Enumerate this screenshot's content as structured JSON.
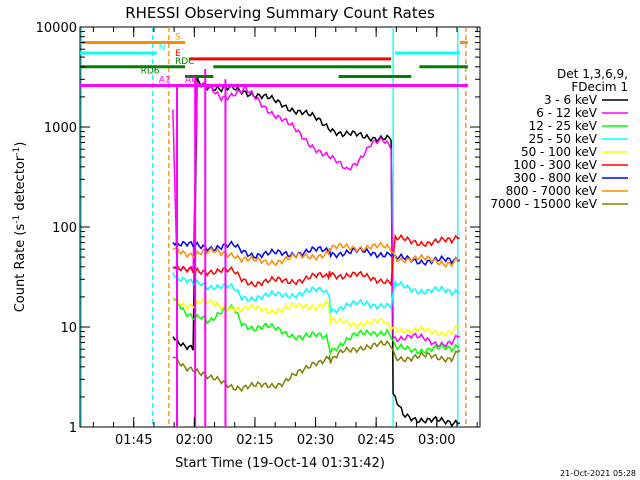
{
  "chart_data": {
    "type": "line",
    "title": "RHESSI Observing Summary Count Rates",
    "xlabel": "Start Time (19-Oct-14 01:31:42)",
    "ylabel_main": "Count Rate (s",
    "ylabel_sup1": "-1",
    "ylabel_mid": " detector",
    "ylabel_sup2": "-1",
    "ylabel_end": ")",
    "x_unit": "minutes since 01:31:42",
    "xlim": [
      0,
      99
    ],
    "ylim": [
      1,
      10000
    ],
    "yscale": "log",
    "x_ticks": [
      {
        "t": 13.3,
        "label": "01:45"
      },
      {
        "t": 28.3,
        "label": "02:00"
      },
      {
        "t": 43.3,
        "label": "02:15"
      },
      {
        "t": 58.3,
        "label": "02:30"
      },
      {
        "t": 73.3,
        "label": "02:45"
      },
      {
        "t": 88.3,
        "label": "03:00"
      }
    ],
    "y_ticks": [
      {
        "v": 1,
        "label": "1"
      },
      {
        "v": 10,
        "label": "10"
      },
      {
        "v": 100,
        "label": "100"
      },
      {
        "v": 1000,
        "label": "1000"
      },
      {
        "v": 10000,
        "label": "10000"
      }
    ],
    "legend": {
      "header": [
        "Det 1,3,6,9,",
        "FDecim 1"
      ],
      "placement": "right"
    },
    "series": [
      {
        "name": "3 - 6 keV",
        "color": "#000000",
        "points": [
          [
            23,
            8
          ],
          [
            24,
            7
          ],
          [
            26,
            6
          ],
          [
            28,
            6
          ],
          [
            29,
            3000
          ],
          [
            31,
            2700
          ],
          [
            35,
            2300
          ],
          [
            38,
            2400
          ],
          [
            41,
            2300
          ],
          [
            45,
            2000
          ],
          [
            50,
            1700
          ],
          [
            55,
            1400
          ],
          [
            60,
            1100
          ],
          [
            65,
            850
          ],
          [
            70,
            800
          ],
          [
            75,
            800
          ],
          [
            77,
            750
          ],
          [
            77.5,
            2
          ],
          [
            80,
            1.3
          ],
          [
            85,
            1.2
          ],
          [
            90,
            1.1
          ],
          [
            92,
            1.1
          ],
          [
            94,
            1.2
          ]
        ]
      },
      {
        "name": "6 - 12 keV",
        "color": "#ff00ff",
        "points": [
          [
            23,
            1500
          ],
          [
            24,
            40
          ],
          [
            26,
            40
          ],
          [
            28,
            40
          ],
          [
            29,
            2600
          ],
          [
            31,
            2500
          ],
          [
            35,
            2000
          ],
          [
            38,
            2200
          ],
          [
            41,
            2300
          ],
          [
            45,
            1700
          ],
          [
            50,
            1200
          ],
          [
            55,
            800
          ],
          [
            60,
            550
          ],
          [
            63,
            450
          ],
          [
            66,
            380
          ],
          [
            69,
            480
          ],
          [
            72,
            650
          ],
          [
            75,
            720
          ],
          [
            77,
            650
          ],
          [
            77.5,
            8
          ],
          [
            82,
            8
          ],
          [
            88,
            7
          ],
          [
            92,
            7
          ],
          [
            94,
            8
          ]
        ]
      },
      {
        "name": "12 - 25 keV",
        "color": "#00ff00",
        "points": [
          [
            23,
            20
          ],
          [
            24,
            18
          ],
          [
            26,
            13
          ],
          [
            28,
            12
          ],
          [
            30,
            13
          ],
          [
            32,
            12
          ],
          [
            35,
            14
          ],
          [
            38,
            15
          ],
          [
            40,
            11
          ],
          [
            43,
            10
          ],
          [
            46,
            10
          ],
          [
            50,
            9
          ],
          [
            55,
            8
          ],
          [
            58,
            8
          ],
          [
            61,
            8
          ],
          [
            62,
            6
          ],
          [
            65,
            7
          ],
          [
            68,
            8
          ],
          [
            72,
            9
          ],
          [
            76,
            9
          ],
          [
            77,
            8
          ],
          [
            78,
            6
          ],
          [
            82,
            6
          ],
          [
            88,
            6
          ],
          [
            92,
            6
          ],
          [
            94,
            7
          ]
        ]
      },
      {
        "name": "25 - 50 keV",
        "color": "#00ffff",
        "points": [
          [
            23,
            35
          ],
          [
            24,
            30
          ],
          [
            26,
            28
          ],
          [
            28,
            27
          ],
          [
            30,
            28
          ],
          [
            32,
            26
          ],
          [
            35,
            25
          ],
          [
            38,
            24
          ],
          [
            40,
            20
          ],
          [
            43,
            20
          ],
          [
            46,
            20
          ],
          [
            50,
            21
          ],
          [
            55,
            22
          ],
          [
            60,
            23
          ],
          [
            61.5,
            22
          ],
          [
            62,
            15
          ],
          [
            65,
            16
          ],
          [
            70,
            17
          ],
          [
            75,
            17
          ],
          [
            77,
            16
          ],
          [
            78,
            26
          ],
          [
            82,
            24
          ],
          [
            88,
            23
          ],
          [
            92,
            22
          ],
          [
            94,
            24
          ]
        ]
      },
      {
        "name": "50 - 100 keV",
        "color": "#ffff00",
        "points": [
          [
            23,
            20
          ],
          [
            24,
            18
          ],
          [
            26,
            17
          ],
          [
            28,
            17
          ],
          [
            30,
            18
          ],
          [
            32,
            17
          ],
          [
            35,
            16
          ],
          [
            38,
            16
          ],
          [
            40,
            15
          ],
          [
            43,
            15
          ],
          [
            46,
            15
          ],
          [
            50,
            15
          ],
          [
            55,
            16
          ],
          [
            60,
            17
          ],
          [
            61.5,
            17
          ],
          [
            62,
            11
          ],
          [
            65,
            11
          ],
          [
            70,
            11
          ],
          [
            75,
            11
          ],
          [
            77,
            10
          ],
          [
            78,
            10
          ],
          [
            82,
            9
          ],
          [
            88,
            9
          ],
          [
            92,
            9
          ],
          [
            94,
            10
          ]
        ]
      },
      {
        "name": "100 - 300 keV",
        "color": "#ff0000",
        "points": [
          [
            23,
            40
          ],
          [
            24,
            40
          ],
          [
            26,
            36
          ],
          [
            28,
            35
          ],
          [
            30,
            36
          ],
          [
            32,
            37
          ],
          [
            35,
            37
          ],
          [
            38,
            35
          ],
          [
            40,
            30
          ],
          [
            43,
            28
          ],
          [
            46,
            28
          ],
          [
            50,
            29
          ],
          [
            55,
            30
          ],
          [
            60,
            32
          ],
          [
            61.5,
            32
          ],
          [
            62,
            35
          ],
          [
            65,
            33
          ],
          [
            70,
            32
          ],
          [
            75,
            30
          ],
          [
            77,
            28
          ],
          [
            78,
            75
          ],
          [
            82,
            72
          ],
          [
            88,
            70
          ],
          [
            92,
            72
          ],
          [
            94,
            85
          ]
        ]
      },
      {
        "name": "300 - 800 keV",
        "color": "#0000ff",
        "points": [
          [
            23,
            70
          ],
          [
            24,
            68
          ],
          [
            26,
            65
          ],
          [
            28,
            64
          ],
          [
            30,
            65
          ],
          [
            32,
            64
          ],
          [
            35,
            63
          ],
          [
            38,
            64
          ],
          [
            40,
            58
          ],
          [
            43,
            54
          ],
          [
            46,
            53
          ],
          [
            50,
            54
          ],
          [
            55,
            56
          ],
          [
            60,
            58
          ],
          [
            61.5,
            58
          ],
          [
            62,
            55
          ],
          [
            65,
            56
          ],
          [
            70,
            56
          ],
          [
            75,
            55
          ],
          [
            77,
            54
          ],
          [
            78,
            48
          ],
          [
            82,
            47
          ],
          [
            88,
            46
          ],
          [
            92,
            45
          ],
          [
            94,
            50
          ]
        ]
      },
      {
        "name": "800 - 7000 keV",
        "color": "#ff8c00",
        "points": [
          [
            23,
            60
          ],
          [
            24,
            58
          ],
          [
            26,
            56
          ],
          [
            28,
            55
          ],
          [
            30,
            56
          ],
          [
            32,
            55
          ],
          [
            35,
            55
          ],
          [
            38,
            55
          ],
          [
            40,
            48
          ],
          [
            43,
            45
          ],
          [
            46,
            45
          ],
          [
            50,
            47
          ],
          [
            55,
            50
          ],
          [
            60,
            54
          ],
          [
            61.5,
            55
          ],
          [
            62,
            60
          ],
          [
            65,
            62
          ],
          [
            70,
            64
          ],
          [
            75,
            62
          ],
          [
            77,
            60
          ],
          [
            78,
            50
          ],
          [
            82,
            48
          ],
          [
            88,
            46
          ],
          [
            92,
            44
          ],
          [
            94,
            48
          ]
        ]
      },
      {
        "name": "7000 - 15000 keV",
        "color": "#808000",
        "points": [
          [
            23,
            5
          ],
          [
            24,
            4.5
          ],
          [
            26,
            4
          ],
          [
            28,
            4
          ],
          [
            30,
            3.5
          ],
          [
            32,
            3
          ],
          [
            35,
            2.8
          ],
          [
            38,
            2.6
          ],
          [
            40,
            2.5
          ],
          [
            43,
            2.5
          ],
          [
            46,
            2.6
          ],
          [
            50,
            2.8
          ],
          [
            55,
            3.5
          ],
          [
            58,
            4.5
          ],
          [
            61.5,
            5
          ],
          [
            62,
            4.5
          ],
          [
            65,
            5.5
          ],
          [
            70,
            6.5
          ],
          [
            75,
            6.5
          ],
          [
            77,
            6.5
          ],
          [
            78,
            5
          ],
          [
            82,
            5
          ],
          [
            88,
            5
          ],
          [
            92,
            5
          ],
          [
            94,
            6
          ]
        ]
      }
    ],
    "annotations": [
      {
        "label": "S",
        "color": "#ff8c00",
        "v": 7000,
        "segments": [
          [
            0,
            26
          ]
        ],
        "label_t": 23.5
      },
      {
        "label": "S",
        "color": "#ff8c00",
        "v": 7000,
        "segments": [
          [
            94,
            96
          ]
        ],
        "label_t": null
      },
      {
        "label": "N",
        "color": "#00ffff",
        "v": 5500,
        "segments": [
          [
            0,
            19
          ],
          [
            78,
            94
          ]
        ],
        "label_t": 19.5
      },
      {
        "label": "E",
        "color": "#ff0000",
        "v": 4800,
        "segments": [
          [
            27,
            77
          ]
        ],
        "label_t": 23.5
      },
      {
        "label": "RDC",
        "color": "#008000",
        "v": 4000,
        "segments": [
          [
            0,
            26
          ],
          [
            33,
            77
          ],
          [
            84,
            96
          ]
        ],
        "label_t": 23.5
      },
      {
        "label": "RD6",
        "color": "#008000",
        "v": 3200,
        "segments": [
          [
            26,
            33
          ],
          [
            64,
            82
          ]
        ],
        "label_t": 15
      },
      {
        "label": "A1",
        "color": "#ff00ff",
        "v": 2600,
        "segments": [
          [
            0,
            23
          ],
          [
            36,
            96
          ]
        ],
        "label_t": 19.5
      },
      {
        "label": "A0",
        "color": "#ff00ff",
        "v": 2600,
        "segments": [
          [
            23,
            36
          ]
        ],
        "label_t": 26
      }
    ],
    "vlines": [
      {
        "t": 18,
        "color": "#00ffff",
        "style": "dash"
      },
      {
        "t": 22,
        "color": "#ff8c00",
        "style": "dash"
      },
      {
        "t": 77.5,
        "color": "#00ffff",
        "style": "solid"
      },
      {
        "t": 93.5,
        "color": "#00ffff",
        "style": "solid"
      },
      {
        "t": 95.5,
        "color": "#ff8c00",
        "style": "dash"
      },
      {
        "t": 0.3,
        "color": "#00ffff",
        "style": "solid"
      }
    ],
    "spikes": [
      {
        "t": 24,
        "color": "#ff00ff",
        "vmax": 2600
      },
      {
        "t": 28.5,
        "color": "#ff00ff",
        "vmax": 3300
      },
      {
        "t": 31,
        "color": "#ff00ff",
        "vmax": 3800
      },
      {
        "t": 36,
        "color": "#ff00ff",
        "vmax": 3000
      }
    ]
  },
  "footer": {
    "timestamp": "21-Oct-2021 05:28"
  }
}
